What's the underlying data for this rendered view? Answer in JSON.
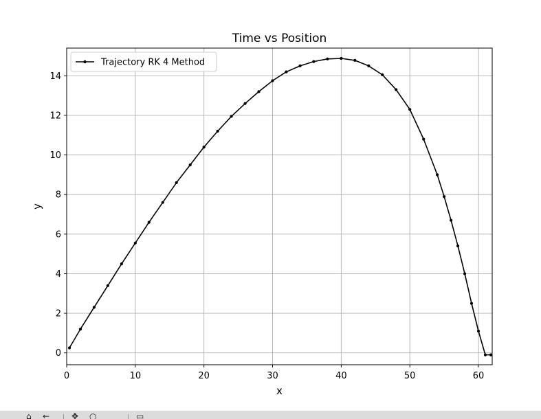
{
  "chart_data": {
    "type": "line",
    "title": "Time vs Position",
    "xlabel": "x",
    "ylabel": "y",
    "xlim": [
      0,
      62.0
    ],
    "ylim": [
      -0.6,
      15.4
    ],
    "xticks": [
      0,
      10,
      20,
      30,
      40,
      50,
      60
    ],
    "yticks": [
      0,
      2,
      4,
      6,
      8,
      10,
      12,
      14
    ],
    "grid": true,
    "legend_position": "top-left",
    "series": [
      {
        "name": "Trajectory RK 4 Method",
        "color": "#000000",
        "marker": "dot",
        "x": [
          0.4,
          2,
          4,
          6,
          8,
          10,
          12,
          14,
          16,
          18,
          20,
          22,
          24,
          26,
          28,
          30,
          32,
          34,
          36,
          38,
          40,
          42,
          44,
          46,
          48,
          50,
          52,
          54,
          55,
          56,
          57,
          58,
          59,
          60,
          61,
          61.8
        ],
        "y": [
          0.25,
          1.2,
          2.3,
          3.4,
          4.5,
          5.55,
          6.6,
          7.6,
          8.6,
          9.5,
          10.4,
          11.2,
          11.95,
          12.6,
          13.2,
          13.75,
          14.2,
          14.5,
          14.72,
          14.85,
          14.88,
          14.78,
          14.5,
          14.05,
          13.3,
          12.3,
          10.8,
          9.0,
          7.9,
          6.7,
          5.4,
          4.0,
          2.5,
          1.1,
          -0.1,
          -0.1
        ]
      }
    ]
  },
  "toolbar": {
    "icons": [
      "home-icon",
      "back-icon",
      "forward-icon",
      "pan-icon",
      "zoom-icon",
      "configure-icon",
      "save-icon"
    ]
  }
}
